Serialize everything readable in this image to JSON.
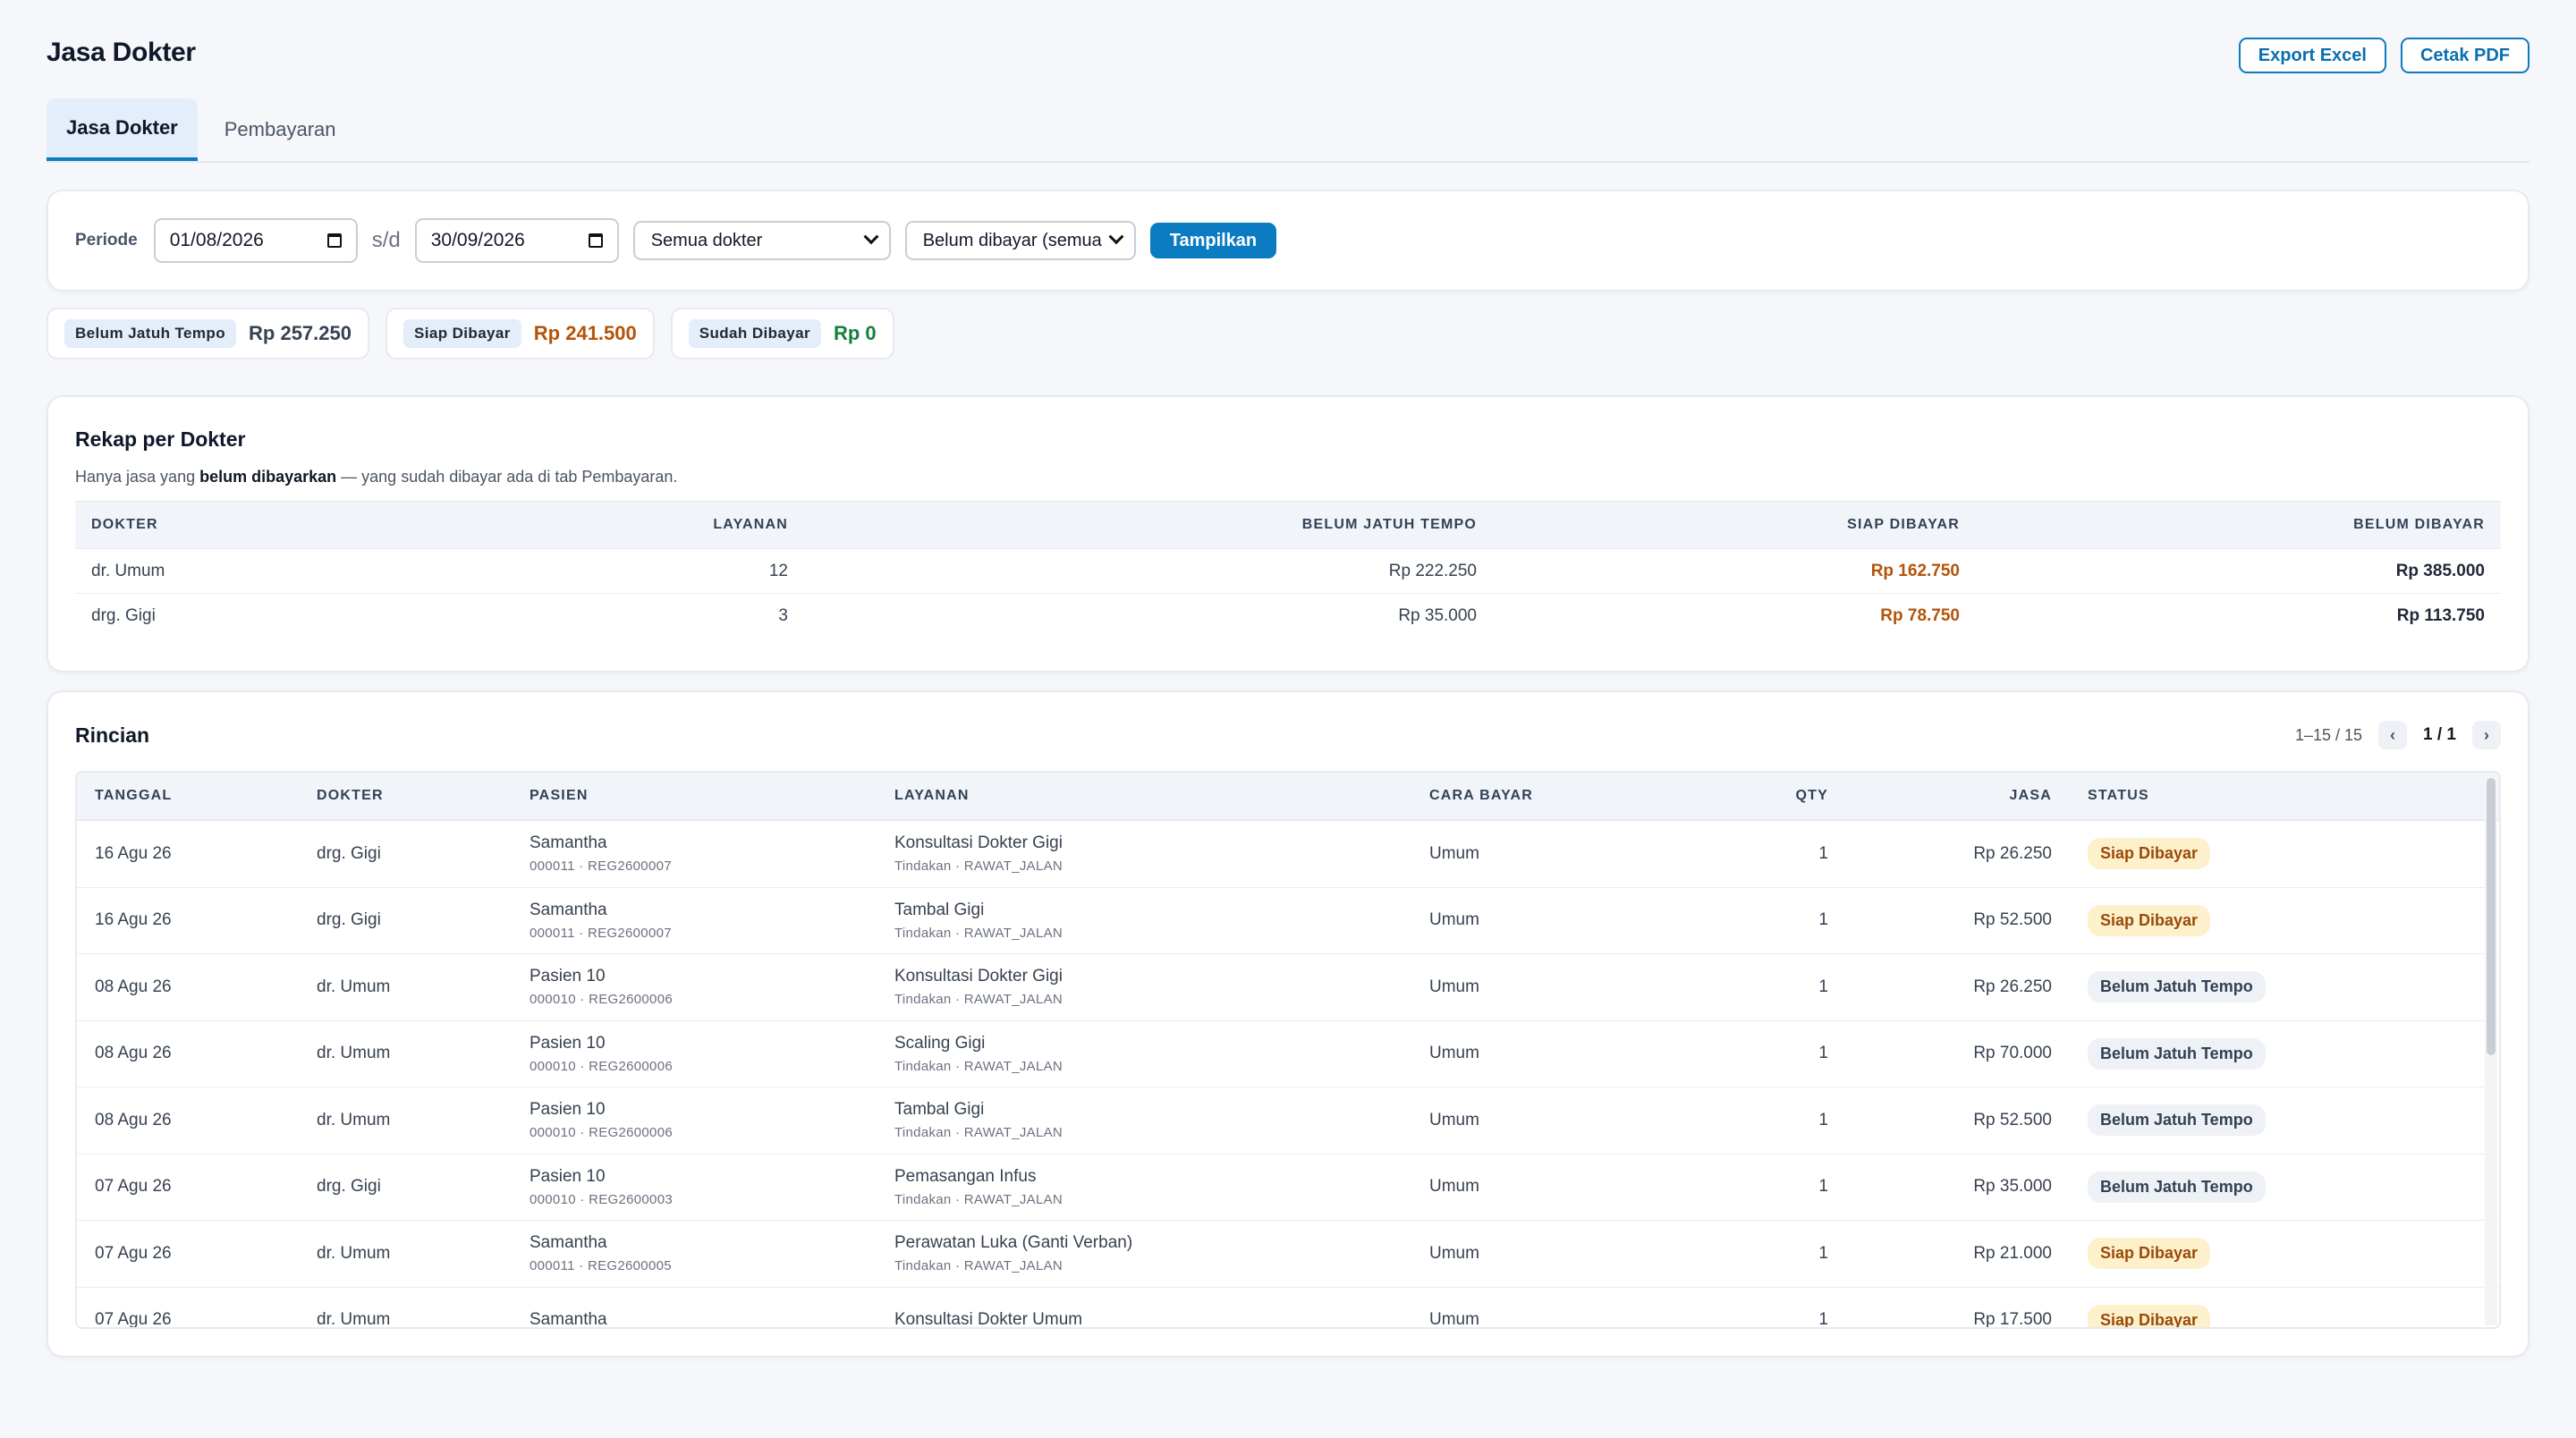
{
  "header": {
    "title": "Jasa Dokter",
    "export_excel": "Export Excel",
    "cetak_pdf": "Cetak PDF"
  },
  "tabs": [
    {
      "label": "Jasa Dokter",
      "active": true
    },
    {
      "label": "Pembayaran",
      "active": false
    }
  ],
  "filter": {
    "periode_label": "Periode",
    "date_from": "01/08/2026",
    "separator": "s/d",
    "date_to": "30/09/2026",
    "dokter_select": "Semua dokter",
    "status_select": "Belum dibayar (semua",
    "submit_label": "Tampilkan"
  },
  "summary": [
    {
      "label": "Belum Jatuh Tempo",
      "value": "Rp 257.250",
      "color": "#374151"
    },
    {
      "label": "Siap Dibayar",
      "value": "Rp 241.500",
      "color": "#b45309"
    },
    {
      "label": "Sudah Dibayar",
      "value": "Rp 0",
      "color": "#15803d"
    }
  ],
  "rekap": {
    "title": "Rekap per Dokter",
    "subtitle_pre": "Hanya jasa yang ",
    "subtitle_bold": "belum dibayarkan",
    "subtitle_post": " — yang sudah dibayar ada di tab Pembayaran.",
    "columns": [
      "DOKTER",
      "LAYANAN",
      "BELUM JATUH TEMPO",
      "SIAP DIBAYAR",
      "BELUM DIBAYAR"
    ],
    "rows": [
      {
        "dokter": "dr. Umum",
        "layanan": "12",
        "belum_jatuh_tempo": "Rp 222.250",
        "siap_dibayar": "Rp 162.750",
        "belum_dibayar": "Rp 385.000"
      },
      {
        "dokter": "drg. Gigi",
        "layanan": "3",
        "belum_jatuh_tempo": "Rp 35.000",
        "siap_dibayar": "Rp 78.750",
        "belum_dibayar": "Rp 113.750"
      }
    ]
  },
  "rincian": {
    "title": "Rincian",
    "range": "1–15 / 15",
    "page": "1 / 1",
    "prev_icon": "‹",
    "next_icon": "›",
    "columns": [
      "TANGGAL",
      "DOKTER",
      "PASIEN",
      "LAYANAN",
      "CARA BAYAR",
      "QTY",
      "JASA",
      "STATUS"
    ],
    "rows": [
      {
        "tanggal": "16 Agu 26",
        "dokter": "drg. Gigi",
        "pasien": "Samantha",
        "pasien_sub": "000011 · REG2600007",
        "layanan": "Konsultasi Dokter Gigi",
        "layanan_sub": "Tindakan · RAWAT_JALAN",
        "cara_bayar": "Umum",
        "qty": "1",
        "jasa": "Rp 26.250",
        "status": "Siap Dibayar",
        "status_type": "siap"
      },
      {
        "tanggal": "16 Agu 26",
        "dokter": "drg. Gigi",
        "pasien": "Samantha",
        "pasien_sub": "000011 · REG2600007",
        "layanan": "Tambal Gigi",
        "layanan_sub": "Tindakan · RAWAT_JALAN",
        "cara_bayar": "Umum",
        "qty": "1",
        "jasa": "Rp 52.500",
        "status": "Siap Dibayar",
        "status_type": "siap"
      },
      {
        "tanggal": "08 Agu 26",
        "dokter": "dr. Umum",
        "pasien": "Pasien 10",
        "pasien_sub": "000010 · REG2600006",
        "layanan": "Konsultasi Dokter Gigi",
        "layanan_sub": "Tindakan · RAWAT_JALAN",
        "cara_bayar": "Umum",
        "qty": "1",
        "jasa": "Rp 26.250",
        "status": "Belum Jatuh Tempo",
        "status_type": "belum"
      },
      {
        "tanggal": "08 Agu 26",
        "dokter": "dr. Umum",
        "pasien": "Pasien 10",
        "pasien_sub": "000010 · REG2600006",
        "layanan": "Scaling Gigi",
        "layanan_sub": "Tindakan · RAWAT_JALAN",
        "cara_bayar": "Umum",
        "qty": "1",
        "jasa": "Rp 70.000",
        "status": "Belum Jatuh Tempo",
        "status_type": "belum"
      },
      {
        "tanggal": "08 Agu 26",
        "dokter": "dr. Umum",
        "pasien": "Pasien 10",
        "pasien_sub": "000010 · REG2600006",
        "layanan": "Tambal Gigi",
        "layanan_sub": "Tindakan · RAWAT_JALAN",
        "cara_bayar": "Umum",
        "qty": "1",
        "jasa": "Rp 52.500",
        "status": "Belum Jatuh Tempo",
        "status_type": "belum"
      },
      {
        "tanggal": "07 Agu 26",
        "dokter": "drg. Gigi",
        "pasien": "Pasien 10",
        "pasien_sub": "000010 · REG2600003",
        "layanan": "Pemasangan Infus",
        "layanan_sub": "Tindakan · RAWAT_JALAN",
        "cara_bayar": "Umum",
        "qty": "1",
        "jasa": "Rp 35.000",
        "status": "Belum Jatuh Tempo",
        "status_type": "belum"
      },
      {
        "tanggal": "07 Agu 26",
        "dokter": "dr. Umum",
        "pasien": "Samantha",
        "pasien_sub": "000011 · REG2600005",
        "layanan": "Perawatan Luka (Ganti Verban)",
        "layanan_sub": "Tindakan · RAWAT_JALAN",
        "cara_bayar": "Umum",
        "qty": "1",
        "jasa": "Rp 21.000",
        "status": "Siap Dibayar",
        "status_type": "siap"
      },
      {
        "tanggal": "07 Agu 26",
        "dokter": "dr. Umum",
        "pasien": "Samantha",
        "pasien_sub": "",
        "layanan": "Konsultasi Dokter Umum",
        "layanan_sub": "",
        "cara_bayar": "Umum",
        "qty": "1",
        "jasa": "Rp 17.500",
        "status": "Siap Dibayar",
        "status_type": "siap"
      }
    ]
  }
}
